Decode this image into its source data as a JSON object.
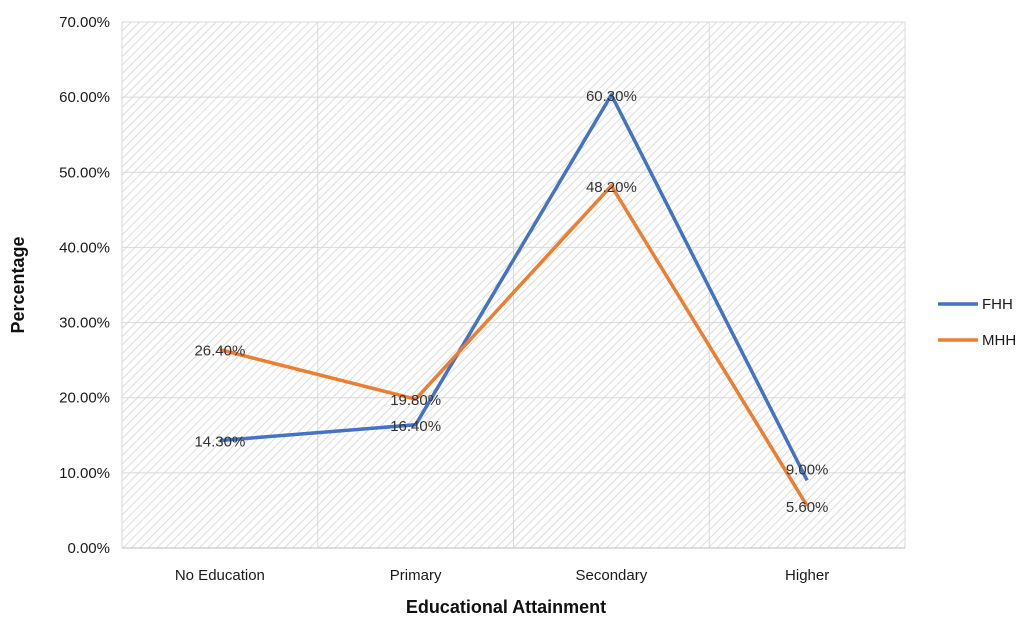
{
  "chart_data": {
    "type": "line",
    "xlabel": "Educational Attainment",
    "ylabel": "Percentage",
    "categories": [
      "No Education",
      "Primary",
      "Secondary",
      "Higher"
    ],
    "ylim": [
      0,
      70
    ],
    "y_ticks": [
      "0.00%",
      "10.00%",
      "20.00%",
      "30.00%",
      "40.00%",
      "50.00%",
      "60.00%",
      "70.00%"
    ],
    "grid": true,
    "legend_position": "right",
    "series": [
      {
        "name": "FHH",
        "color": "#4472C4",
        "values": [
          14.3,
          16.4,
          60.3,
          9.0
        ],
        "labels": [
          "14.30%",
          "16.40%",
          "60.30%",
          "9.00%"
        ]
      },
      {
        "name": "MHH",
        "color": "#ED7D31",
        "values": [
          26.4,
          19.8,
          48.2,
          5.6
        ],
        "labels": [
          "26.40%",
          "19.80%",
          "48.20%",
          "5.60%"
        ]
      }
    ]
  }
}
